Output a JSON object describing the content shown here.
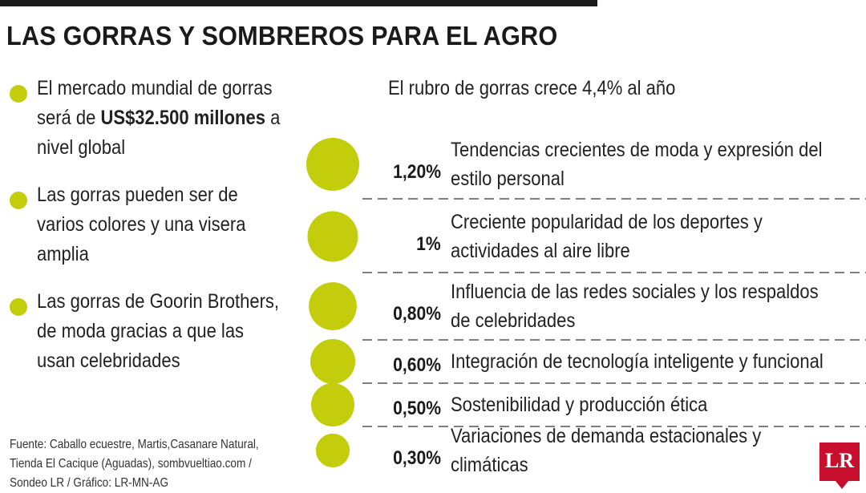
{
  "header": {
    "title": "LAS GORRAS Y SOMBREROS PARA EL AGRO"
  },
  "bullets": [
    {
      "parts": [
        {
          "text": "El mercado mundial de gorras será de ",
          "bold": false
        },
        {
          "text": "US$32.500 millones",
          "bold": true
        },
        {
          "text": " a nivel global",
          "bold": false
        }
      ]
    },
    {
      "parts": [
        {
          "text": "Las gorras pueden ser de varios colores y una visera amplia",
          "bold": false
        }
      ]
    },
    {
      "parts": [
        {
          "text": "Las gorras de Goorin Brothers, de moda gracias a que las usan celebridades",
          "bold": false
        }
      ]
    }
  ],
  "source": {
    "lines": [
      "Fuente: Caballo ecuestre, Martis,Casanare Natural,",
      "Tienda El Cacique (Aguadas), sombvueltiao.com /",
      "Sondeo LR / Gráfico: LR-MN-AG"
    ]
  },
  "colors": {
    "accent": "#c3cd0c",
    "text": "#1a1a1a",
    "divider": "#555555",
    "logo": "#c8102e"
  },
  "logo": {
    "text": "LR"
  },
  "chart_data": {
    "type": "bubble",
    "title": "El rubro de gorras crece 4,4% al año",
    "unit": "%",
    "items": [
      {
        "label": "Tendencias crecientes de moda y expresión del estilo personal",
        "label_lines": [
          "Tendencias crecientes de moda y expresión del",
          "estilo personal"
        ],
        "value": 1.2,
        "display": "1,20%"
      },
      {
        "label": "Creciente popularidad de los deportes y actividades al aire libre",
        "label_lines": [
          "Creciente popularidad de los deportes y",
          "actividades al aire libre"
        ],
        "value": 1.0,
        "display": "1%"
      },
      {
        "label": "Influencia de las redes sociales y los respaldos de celebridades",
        "label_lines": [
          "Influencia de las redes sociales y los respaldos",
          "de celebridades"
        ],
        "value": 0.8,
        "display": "0,80%"
      },
      {
        "label": "Integración de tecnología inteligente y funcional",
        "label_lines": [
          "Integración de tecnología inteligente y funcional"
        ],
        "value": 0.6,
        "display": "0,60%"
      },
      {
        "label": "Sostenibilidad y producción ética",
        "label_lines": [
          "Sostenibilidad y producción ética"
        ],
        "value": 0.5,
        "display": "0,50%"
      },
      {
        "label": "Variaciones de demanda estacionales y climáticas",
        "label_lines": [
          "Variaciones de demanda estacionales y",
          "climáticas"
        ],
        "value": 0.3,
        "display": "0,30%"
      }
    ]
  }
}
